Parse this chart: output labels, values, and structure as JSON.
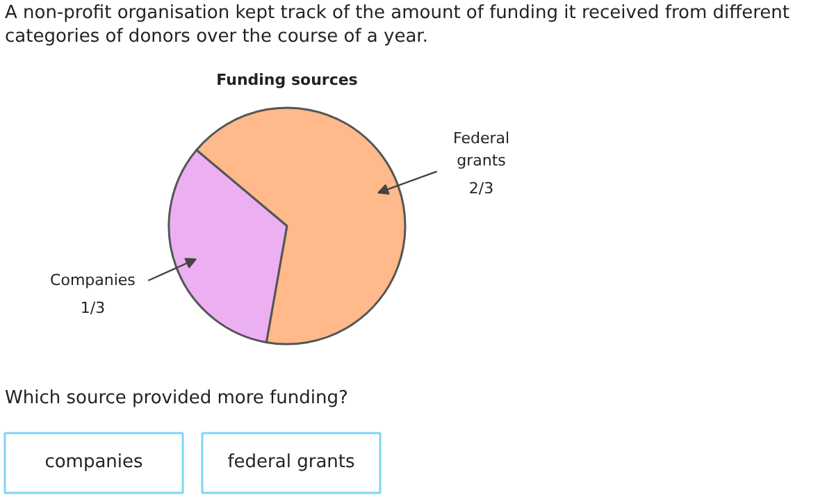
{
  "chart_data": {
    "type": "pie",
    "title": "Funding sources",
    "categories": [
      "Companies",
      "Federal grants"
    ],
    "values": [
      0.3333,
      0.6667
    ],
    "colors": [
      "#ecb0f2",
      "#ffb98a"
    ],
    "value_labels": [
      "1/3",
      "2/3"
    ],
    "annotations": [
      "A non-profit organisation kept track of the amount of funding it received from different categories of donors over the course of a year.",
      "Which source provided more funding?",
      "companies",
      "federal grants"
    ]
  }
}
